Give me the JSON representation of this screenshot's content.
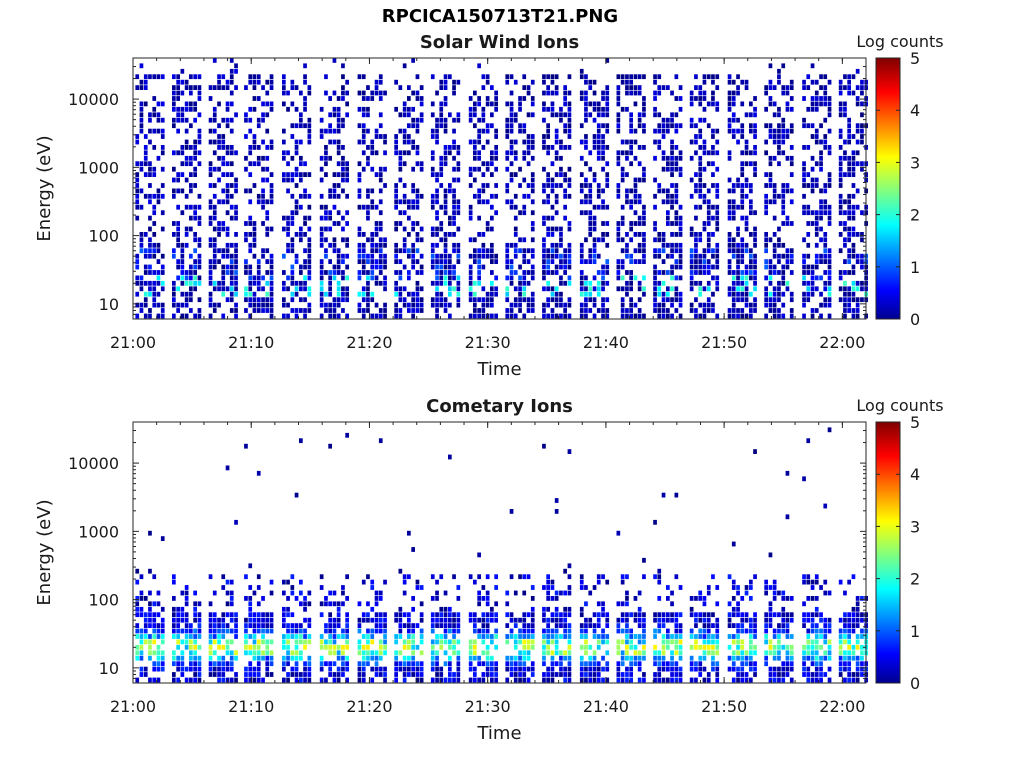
{
  "figure": {
    "title": "RPCICA150713T21.PNG"
  },
  "chart_data": [
    {
      "type": "heatmap",
      "title": "Solar Wind Ions",
      "xlabel": "Time",
      "ylabel": "Energy (eV)",
      "x_ticks": [
        "21:00",
        "21:10",
        "21:20",
        "21:30",
        "21:40",
        "21:50",
        "22:00"
      ],
      "y_ticks": [
        "10",
        "100",
        "1000",
        "10000"
      ],
      "y_scale": "log",
      "ylim": [
        6,
        40000
      ],
      "xlim": [
        "21:00",
        "22:02"
      ],
      "colorbar": {
        "label": "Log counts",
        "ticks": [
          "0",
          "1",
          "2",
          "3",
          "4",
          "5"
        ],
        "range": [
          0,
          5
        ],
        "colormap": "jet"
      },
      "sweep_starts_min": [
        0.2,
        3.3,
        6.4,
        9.4,
        12.6,
        15.8,
        19.0,
        22.1,
        25.2,
        28.4,
        31.5,
        34.6,
        37.8,
        40.9,
        44.0,
        47.1,
        50.3,
        53.4,
        56.6,
        59.7
      ],
      "description": "Sparse low-count signal (log counts ~0-1) spanning 10 eV to ~20000 eV in vertical stripes every ~3.1 minutes; higher counts (~1.5-2) near 10-20 eV"
    },
    {
      "type": "heatmap",
      "title": "Cometary Ions",
      "xlabel": "Time",
      "ylabel": "Energy (eV)",
      "x_ticks": [
        "21:00",
        "21:10",
        "21:20",
        "21:30",
        "21:40",
        "21:50",
        "22:00"
      ],
      "y_ticks": [
        "10",
        "100",
        "1000",
        "10000"
      ],
      "y_scale": "log",
      "ylim": [
        6,
        40000
      ],
      "xlim": [
        "21:00",
        "22:02"
      ],
      "colorbar": {
        "label": "Log counts",
        "ticks": [
          "0",
          "1",
          "2",
          "3",
          "4",
          "5"
        ],
        "range": [
          0,
          5
        ],
        "colormap": "jet"
      },
      "sweep_starts_min": [
        0.2,
        3.3,
        6.4,
        9.4,
        12.6,
        15.8,
        19.0,
        22.1,
        25.2,
        28.4,
        31.5,
        34.6,
        37.8,
        40.9,
        44.0,
        47.1,
        50.3,
        53.4,
        56.6,
        59.7
      ],
      "description": "Concentrated signal below ~200 eV with log counts up to ~3 around 10-40 eV; sparse isolated points at higher energies"
    }
  ]
}
